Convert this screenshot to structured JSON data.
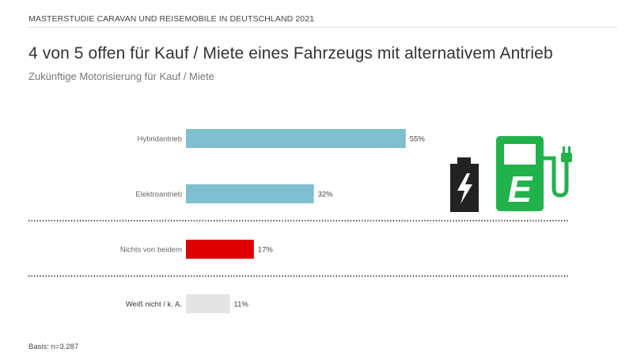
{
  "header": {
    "source_line": "MASTERSTUDIE CARAVAN UND REISEMOBILE IN DEUTSCHLAND 2021"
  },
  "title": "4 von 5 offen für Kauf / Miete eines Fahrzeugs mit alternativem Antrieb",
  "subtitle": "Zukünftige Motorisierung für Kauf / Miete",
  "footer": {
    "basis": "Basis: n=3.287"
  },
  "colors": {
    "bar_blue": "#7fbfcf",
    "bar_red": "#e00000",
    "bar_grey": "#e4e4e4",
    "icon_green": "#22b24c",
    "icon_dark": "#222222",
    "dotted_line": "#444444"
  },
  "icons": [
    "battery-bolt-icon",
    "ev-charging-station-icon"
  ],
  "chart_data": {
    "type": "bar",
    "orientation": "horizontal",
    "categories": [
      "Hybridantrieb",
      "Elektroantrieb",
      "Nichts von beidem",
      "Weiß nicht / k. A."
    ],
    "values": [
      55,
      32,
      17,
      11
    ],
    "value_labels": [
      "55%",
      "32%",
      "17%",
      "11%"
    ],
    "unit": "%",
    "title": "4 von 5 offen für Kauf / Miete eines Fahrzeugs mit alternativem Antrieb",
    "subtitle": "Zukünftige Motorisierung für Kauf / Miete",
    "xlim": [
      0,
      100
    ],
    "grid": false,
    "legend": "none"
  }
}
